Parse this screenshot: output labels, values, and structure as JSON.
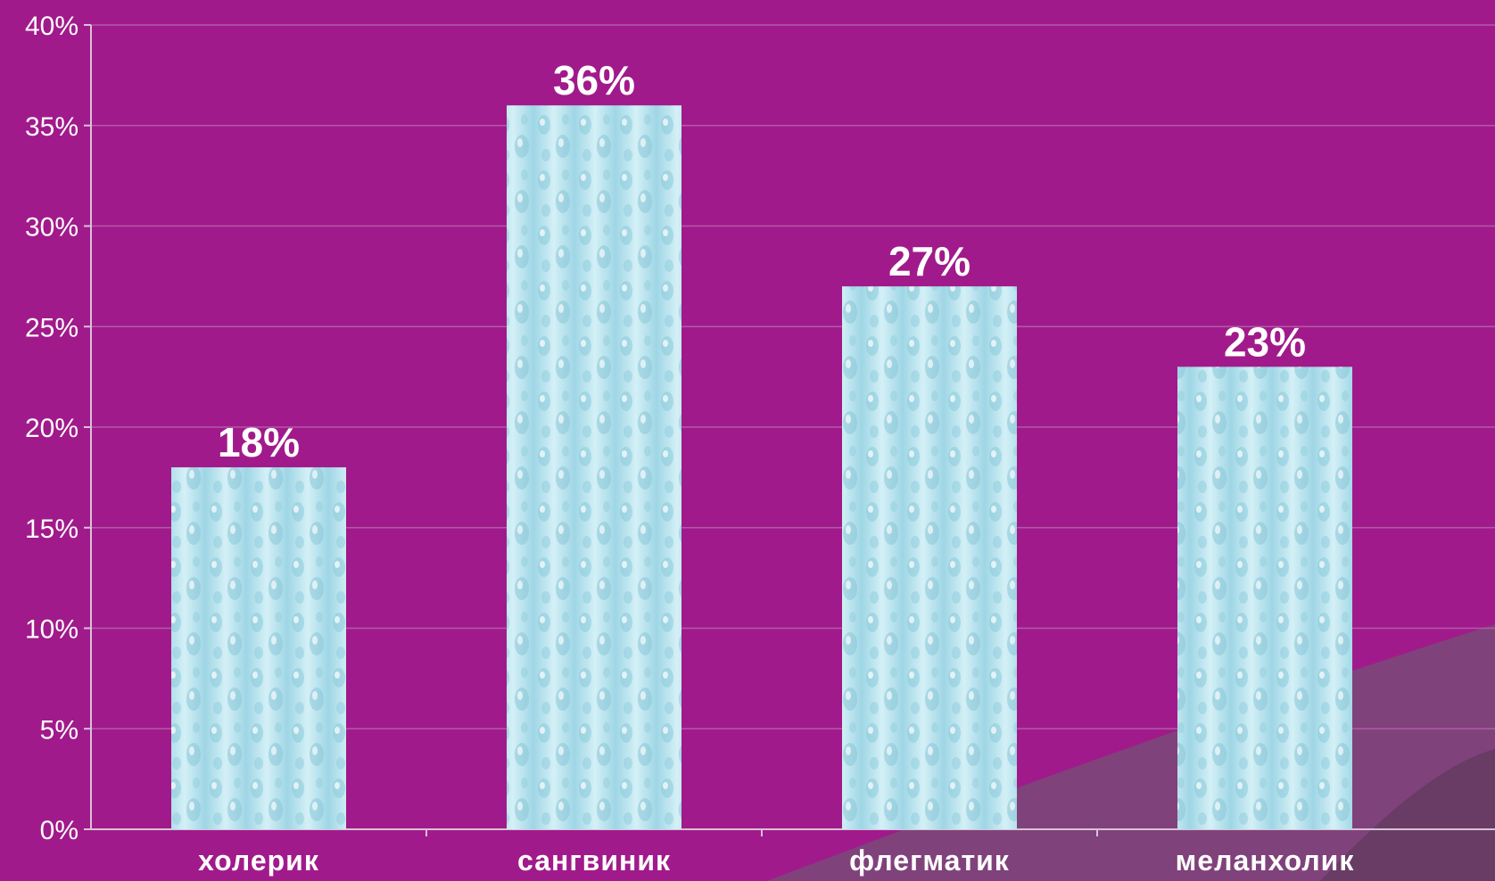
{
  "colors": {
    "background": "#a11a8b",
    "gridline": "#b05aa8",
    "axis": "#d9c2d6",
    "text": "#ffffff",
    "bar_fill_light": "#d8f2f8",
    "bar_fill_mid": "#aee1ec",
    "bar_fill_dark": "#8cc9db",
    "corner_decoration": "#7a4a78"
  },
  "chart_data": {
    "type": "bar",
    "categories": [
      "холерик",
      "сангвиник",
      "флегматик",
      "меланхолик"
    ],
    "values": [
      18,
      36,
      27,
      23
    ],
    "value_labels": [
      "18%",
      "36%",
      "27%",
      "23%"
    ],
    "ylim": [
      0,
      40
    ],
    "y_ticks": [
      0,
      5,
      10,
      15,
      20,
      25,
      30,
      35,
      40
    ],
    "y_tick_labels": [
      "0%",
      "5%",
      "10%",
      "15%",
      "20%",
      "25%",
      "30%",
      "35%",
      "40%"
    ],
    "grid": true,
    "legend": "none",
    "title": "",
    "xlabel": "",
    "ylabel": ""
  }
}
